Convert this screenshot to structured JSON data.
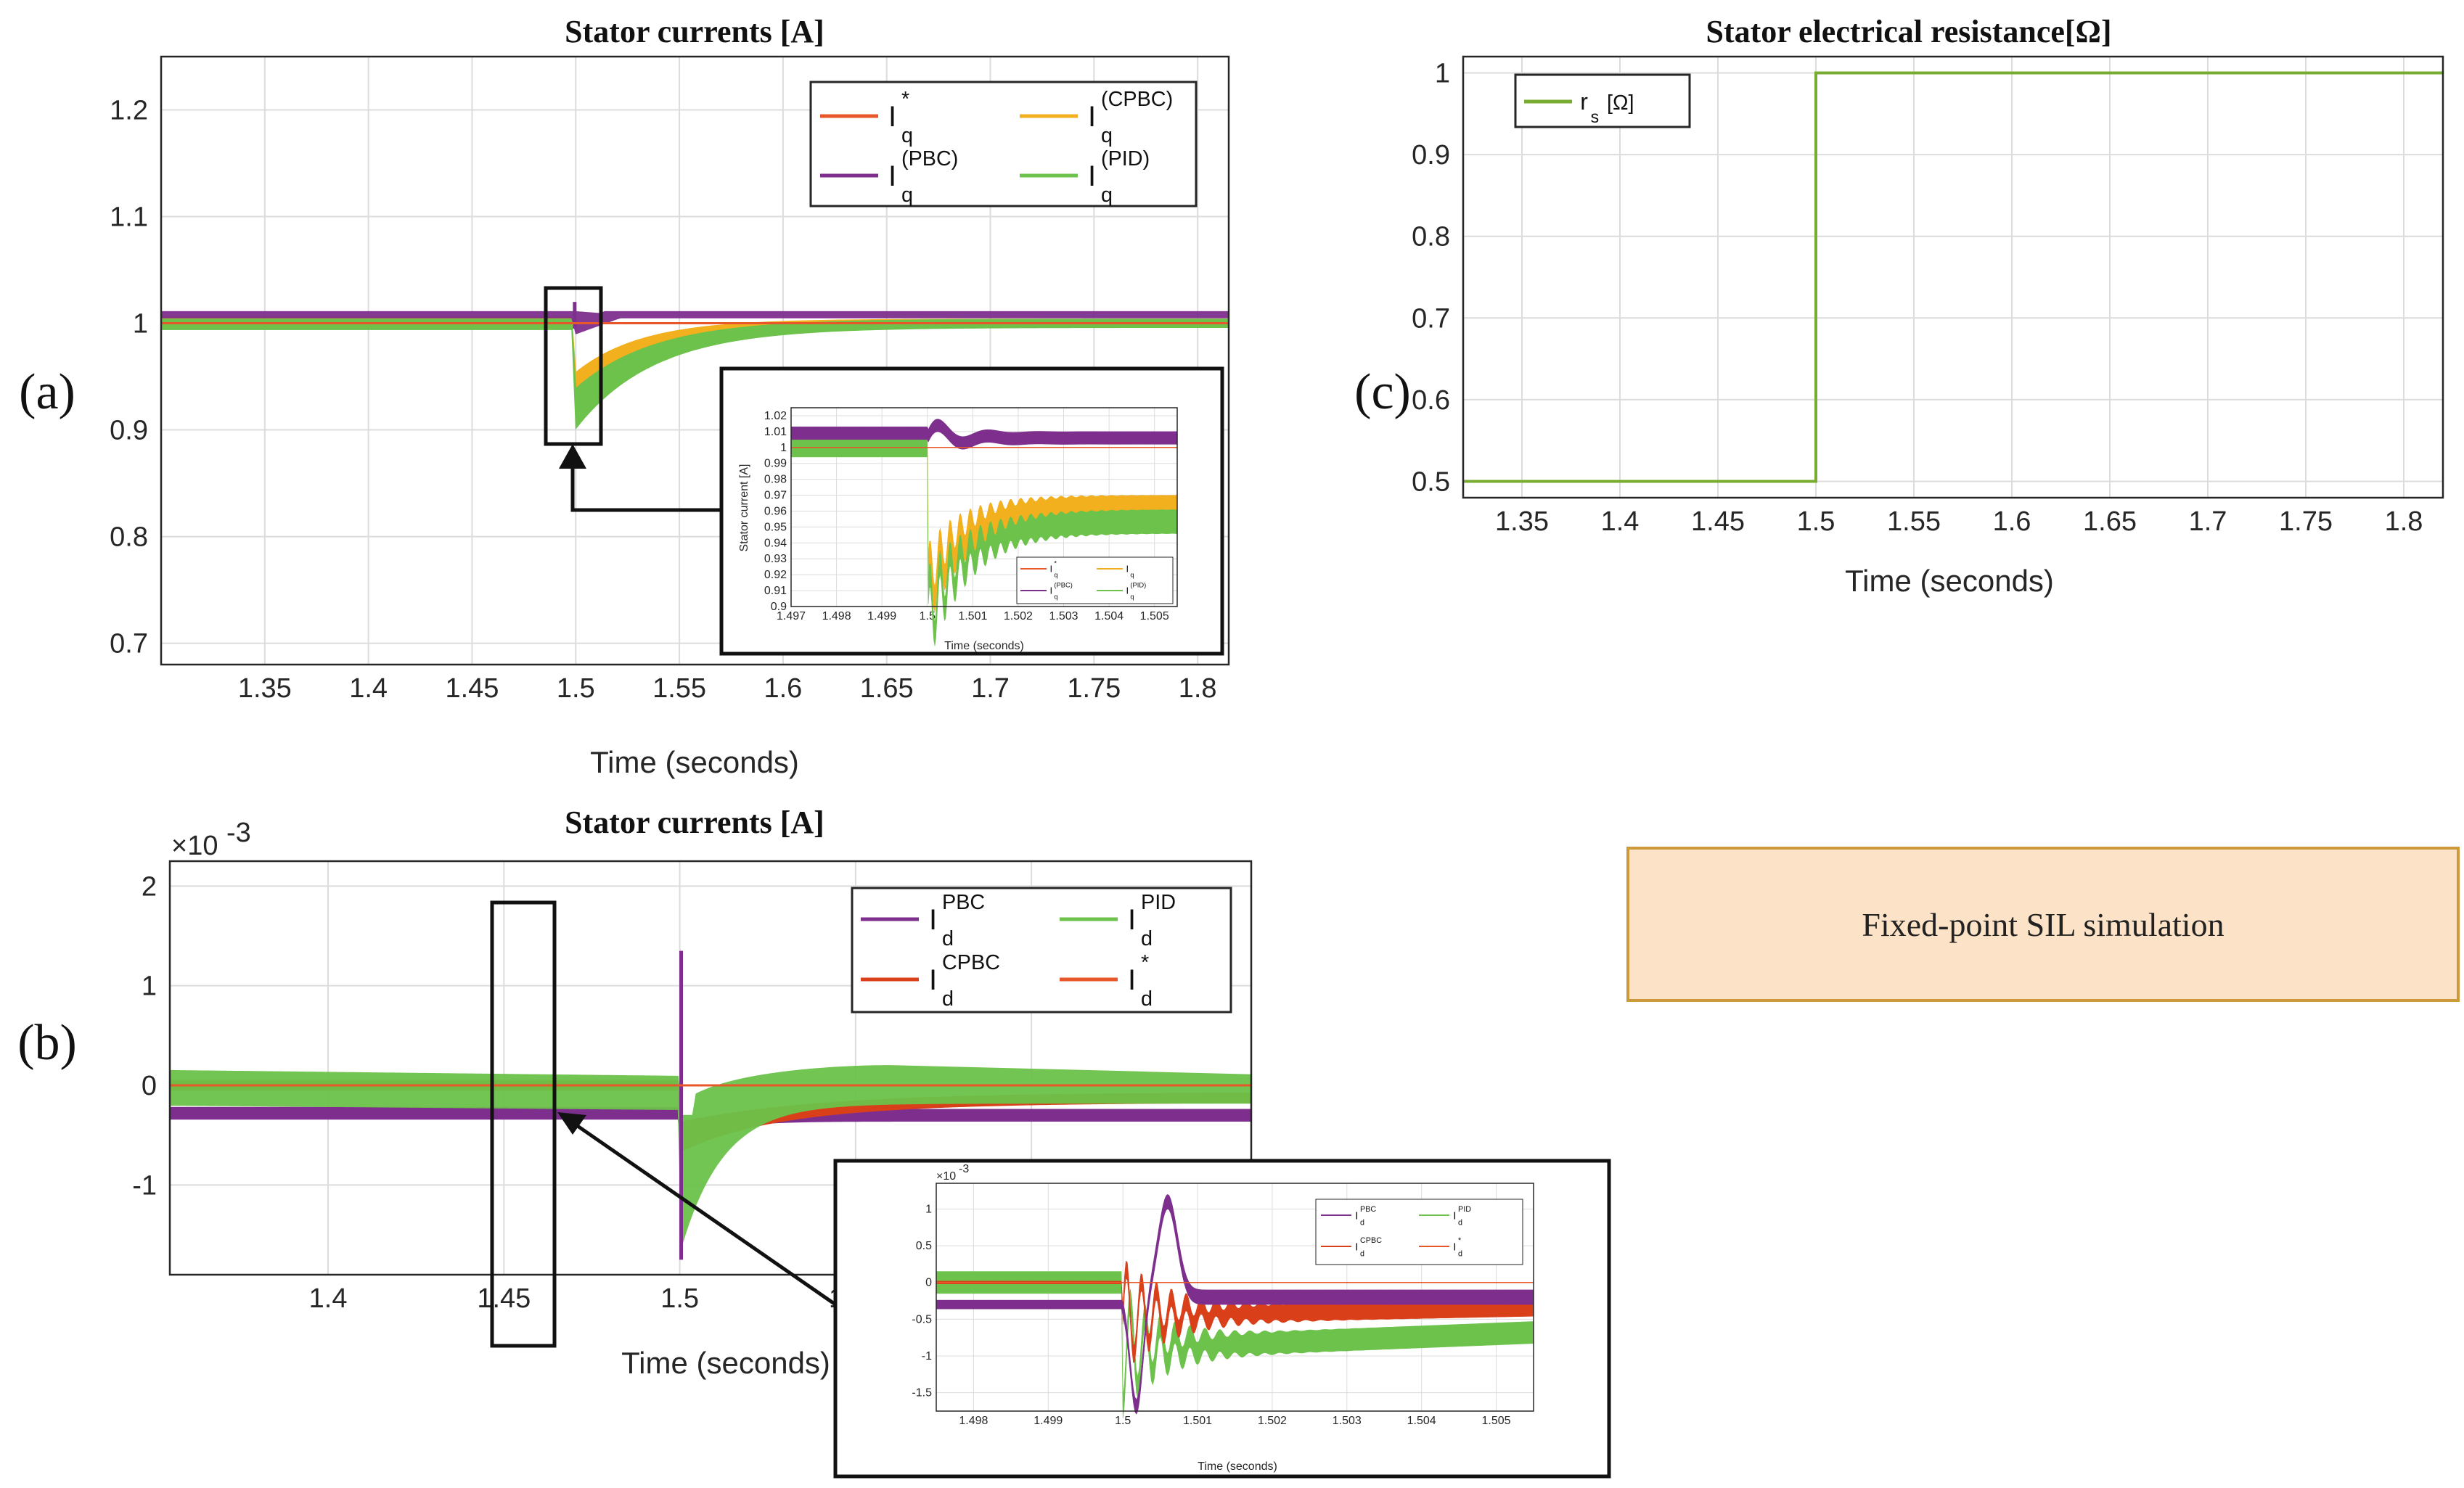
{
  "colors": {
    "ref": "#e8572a",
    "cpbc": "#f2b01e",
    "pbc": "#7e2f8e",
    "pid": "#6cc24a",
    "rs": "#77ac30",
    "dref": "#e8572a",
    "dcpbc": "#d9401a"
  },
  "panels": {
    "a": "(a)",
    "b": "(b)",
    "c": "(c)"
  },
  "note": "Fixed-point SIL simulation",
  "chart_data": [
    {
      "id": "a",
      "type": "line",
      "title": "Stator currents [A]",
      "xlabel": "Time (seconds)",
      "ylabel": "",
      "xlim": [
        1.3,
        1.815
      ],
      "ylim": [
        0.68,
        1.25
      ],
      "xticks": [
        "1.35",
        "1.4",
        "1.45",
        "1.5",
        "1.55",
        "1.6",
        "1.65",
        "1.7",
        "1.75",
        "1.8"
      ],
      "xtick_values": [
        1.35,
        1.4,
        1.45,
        1.5,
        1.55,
        1.6,
        1.65,
        1.7,
        1.75,
        1.8
      ],
      "yticks": [
        "0.7",
        "0.8",
        "0.9",
        "1",
        "1.1",
        "1.2"
      ],
      "ytick_values": [
        0.7,
        0.8,
        0.9,
        1.0,
        1.1,
        1.2
      ],
      "legend": [
        {
          "label": "I",
          "sub": "q",
          "sup": "*",
          "color": "ref"
        },
        {
          "label": "I",
          "sub": "q",
          "sup": "(CPBC)",
          "color": "cpbc"
        },
        {
          "label": "I",
          "sub": "q",
          "sup": "(PBC)",
          "color": "pbc"
        },
        {
          "label": "I",
          "sub": "q",
          "sup": "(PID)",
          "color": "pid"
        }
      ],
      "series": [
        {
          "name": "I_q*",
          "reference": 1.0
        },
        {
          "name": "I_q^(PBC)",
          "before": 1.008,
          "min_at_step": 1.02,
          "after": 1.008
        },
        {
          "name": "I_q^(CPBC)",
          "before": 1.003,
          "dip": 0.945,
          "recovery_tau": 0.03
        },
        {
          "name": "I_q^(PID)",
          "before": 1.0,
          "dip": 0.905,
          "recovery_tau": 0.035
        }
      ],
      "step_time": 1.5
    },
    {
      "id": "a-inset",
      "type": "line",
      "title": "",
      "xlabel": "Time (seconds)",
      "ylabel": "Stator current [A]",
      "xlim": [
        1.497,
        1.5055
      ],
      "ylim": [
        0.9,
        1.025
      ],
      "xticks": [
        "1.497",
        "1.498",
        "1.499",
        "1.5",
        "1.501",
        "1.502",
        "1.503",
        "1.504",
        "1.505"
      ],
      "xtick_values": [
        1.497,
        1.498,
        1.499,
        1.5,
        1.501,
        1.502,
        1.503,
        1.504,
        1.505
      ],
      "yticks": [
        "0.9",
        "0.91",
        "0.92",
        "0.93",
        "0.94",
        "0.95",
        "0.96",
        "0.97",
        "0.98",
        "0.99",
        "1",
        "1.01",
        "1.02"
      ],
      "ytick_values": [
        0.9,
        0.91,
        0.92,
        0.93,
        0.94,
        0.95,
        0.96,
        0.97,
        0.98,
        0.99,
        1.0,
        1.01,
        1.02
      ],
      "legend": [
        {
          "label": "I",
          "sub": "q",
          "sup": "*",
          "color": "ref"
        },
        {
          "label": "I",
          "sub": "q",
          "sup": "",
          "color": "cpbc"
        },
        {
          "label": "I",
          "sub": "q",
          "sup": "(PBC)",
          "color": "pbc"
        },
        {
          "label": "I",
          "sub": "q",
          "sup": "(PID)",
          "color": "pid"
        }
      ]
    },
    {
      "id": "b",
      "type": "line",
      "title": "Stator currents [A]",
      "xlabel": "Time (seconds)",
      "ylabel": "",
      "xlim": [
        1.355,
        1.6625
      ],
      "ylim": [
        -1.9,
        2.25
      ],
      "exponent": "×10^-3",
      "xticks": [
        "1.4",
        "1.45",
        "1.5",
        "1.55",
        "1.6"
      ],
      "xtick_values": [
        1.4,
        1.45,
        1.5,
        1.55,
        1.6
      ],
      "yticks": [
        "-1",
        "0",
        "1",
        "2"
      ],
      "ytick_values": [
        -1,
        0,
        1,
        2
      ],
      "legend": [
        {
          "label": "I",
          "sub": "d",
          "sup": "PBC",
          "color": "pbc"
        },
        {
          "label": "I",
          "sub": "d",
          "sup": "PID",
          "color": "pid"
        },
        {
          "label": "I",
          "sub": "d",
          "sup": "CPBC",
          "color": "dcpbc"
        },
        {
          "label": "I",
          "sub": "d",
          "sup": "*",
          "color": "dref"
        }
      ],
      "series": [
        {
          "name": "I_d^PBC",
          "before": -0.3,
          "spike": 1.35,
          "min": -1.75,
          "after": -0.3
        },
        {
          "name": "I_d^PID",
          "before": 0.05,
          "min": -1.5,
          "after": 0.1
        },
        {
          "name": "I_d^CPBC",
          "before": 0.0,
          "min": -0.5,
          "after": -0.2
        },
        {
          "name": "I_d*",
          "reference": 0.0
        }
      ],
      "step_time": 1.5
    },
    {
      "id": "b-inset",
      "type": "line",
      "title": "",
      "xlabel": "Time (seconds)",
      "ylabel": "",
      "xlim": [
        1.4975,
        1.5055
      ],
      "ylim": [
        -1.75,
        1.35
      ],
      "exponent": "×10^-3",
      "xticks": [
        "1.498",
        "1.499",
        "1.5",
        "1.501",
        "1.502",
        "1.503",
        "1.504",
        "1.505"
      ],
      "xtick_values": [
        1.498,
        1.499,
        1.5,
        1.501,
        1.502,
        1.503,
        1.504,
        1.505
      ],
      "yticks": [
        "-1.5",
        "-1",
        "-0.5",
        "0",
        "0.5",
        "1"
      ],
      "ytick_values": [
        -1.5,
        -1,
        -0.5,
        0,
        0.5,
        1
      ],
      "legend": [
        {
          "label": "I",
          "sub": "d",
          "sup": "PBC",
          "color": "pbc"
        },
        {
          "label": "I",
          "sub": "d",
          "sup": "PID",
          "color": "pid"
        },
        {
          "label": "I",
          "sub": "d",
          "sup": "CPBC",
          "color": "dcpbc"
        },
        {
          "label": "I",
          "sub": "d",
          "sup": "*",
          "color": "dref"
        }
      ]
    },
    {
      "id": "c",
      "type": "line",
      "title": "Stator electrical resistance[Ω]",
      "xlabel": "Time (seconds)",
      "ylabel": "",
      "xlim": [
        1.32,
        1.82
      ],
      "ylim": [
        0.48,
        1.02
      ],
      "xticks": [
        "1.35",
        "1.4",
        "1.45",
        "1.5",
        "1.55",
        "1.6",
        "1.65",
        "1.7",
        "1.75",
        "1.8"
      ],
      "xtick_values": [
        1.35,
        1.4,
        1.45,
        1.5,
        1.55,
        1.6,
        1.65,
        1.7,
        1.75,
        1.8
      ],
      "yticks": [
        "0.5",
        "0.6",
        "0.7",
        "0.8",
        "0.9",
        "1"
      ],
      "ytick_values": [
        0.5,
        0.6,
        0.7,
        0.8,
        0.9,
        1.0
      ],
      "legend": [
        {
          "label": "r",
          "sub": "s",
          "sup": "",
          "unit": "[Ω]",
          "color": "rs"
        }
      ],
      "series": [
        {
          "name": "r_s",
          "x": [
            1.32,
            1.5,
            1.5,
            1.82
          ],
          "y": [
            0.5,
            0.5,
            1.0,
            1.0
          ]
        }
      ]
    }
  ]
}
